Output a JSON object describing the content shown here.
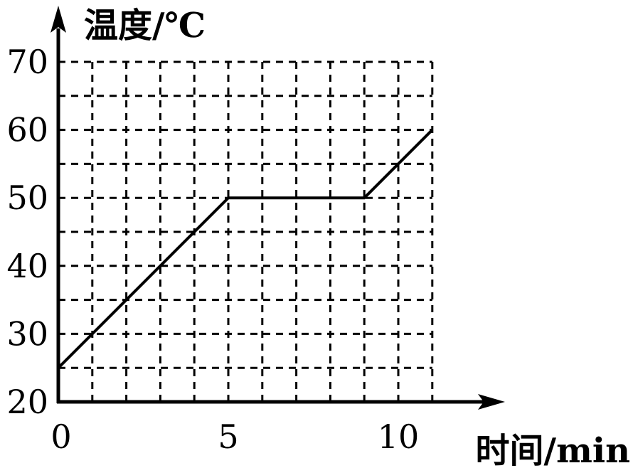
{
  "chart_data": {
    "type": "line",
    "xlabel": "时间/min",
    "ylabel": "温度/℃",
    "xlim": [
      0,
      11
    ],
    "ylim": [
      20,
      70
    ],
    "x_ticks": [
      0,
      5,
      10
    ],
    "y_ticks": [
      20,
      30,
      40,
      50,
      60,
      70
    ],
    "x_grid_step": 1,
    "y_grid_step": 5,
    "grid": true,
    "series": [
      {
        "x": [
          0,
          5,
          9,
          11
        ],
        "y": [
          25,
          50,
          50,
          60
        ]
      }
    ]
  }
}
